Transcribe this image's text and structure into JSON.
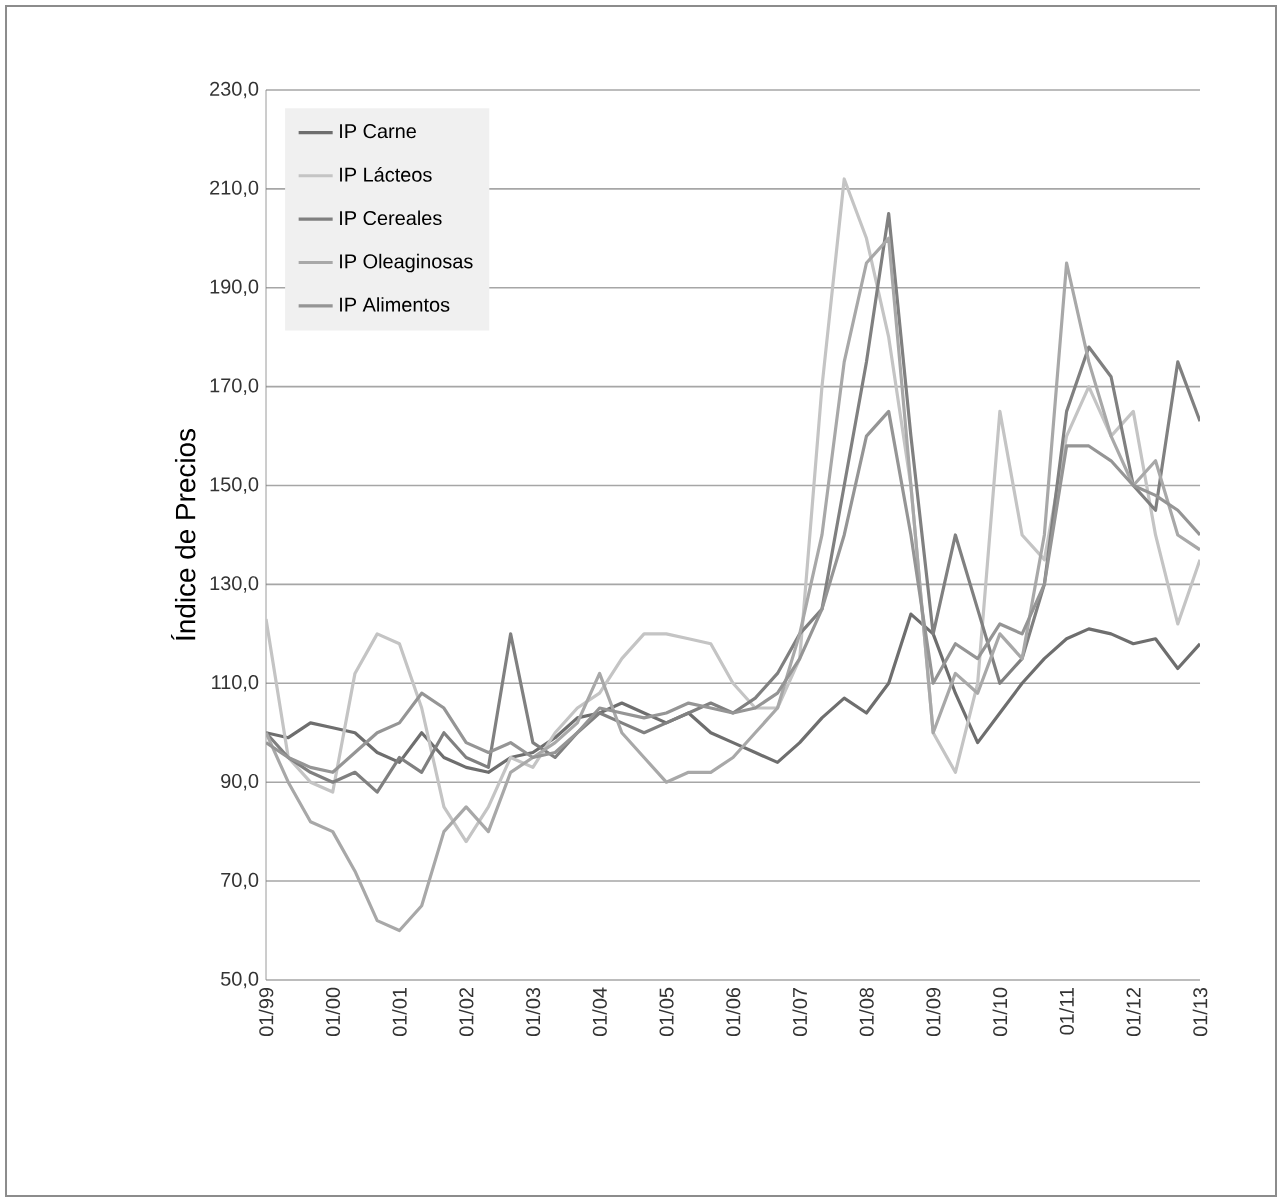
{
  "chart_data": {
    "type": "line",
    "ylabel": "Índice de Precios",
    "x": [
      "1999-01",
      "1999-05",
      "1999-09",
      "2000-01",
      "2000-05",
      "2000-09",
      "2001-01",
      "2001-05",
      "2001-09",
      "2002-01",
      "2002-05",
      "2002-09",
      "2003-01",
      "2003-05",
      "2003-09",
      "2004-01",
      "2004-05",
      "2004-09",
      "2005-01",
      "2005-05",
      "2005-09",
      "2006-01",
      "2006-05",
      "2006-09",
      "2007-01",
      "2007-05",
      "2007-09",
      "2008-01",
      "2008-05",
      "2008-09",
      "2009-01",
      "2009-05",
      "2009-09",
      "2010-01",
      "2010-05",
      "2010-09",
      "2011-01",
      "2011-05",
      "2011-09",
      "2012-01",
      "2012-05",
      "2012-09",
      "2013-01"
    ],
    "series": [
      {
        "name": "IP Carne",
        "color": "#6e6e6e",
        "values": [
          100,
          99,
          102,
          101,
          100,
          96,
          94,
          100,
          95,
          93,
          92,
          95,
          96,
          99,
          103,
          104,
          106,
          104,
          102,
          104,
          100,
          98,
          96,
          94,
          98,
          103,
          107,
          104,
          110,
          124,
          120,
          108,
          98,
          104,
          110,
          115,
          119,
          121,
          120,
          118,
          119,
          113,
          118
        ]
      },
      {
        "name": "IP Lácteos",
        "color": "#c4c4c4",
        "values": [
          123,
          95,
          90,
          88,
          112,
          120,
          118,
          105,
          85,
          78,
          85,
          95,
          93,
          100,
          105,
          108,
          115,
          120,
          120,
          119,
          118,
          110,
          105,
          105,
          115,
          170,
          212,
          200,
          180,
          150,
          100,
          92,
          110,
          165,
          140,
          135,
          160,
          170,
          160,
          165,
          140,
          122,
          135
        ]
      },
      {
        "name": "IP Cereales",
        "color": "#808080",
        "values": [
          100,
          95,
          92,
          90,
          92,
          88,
          95,
          92,
          100,
          95,
          93,
          120,
          98,
          95,
          100,
          104,
          102,
          100,
          102,
          104,
          106,
          104,
          107,
          112,
          120,
          125,
          150,
          175,
          205,
          160,
          120,
          140,
          125,
          110,
          115,
          130,
          165,
          178,
          172,
          150,
          145,
          175,
          163
        ]
      },
      {
        "name": "IP Oleaginosas",
        "color": "#a8a8a8",
        "values": [
          100,
          90,
          82,
          80,
          72,
          62,
          60,
          65,
          80,
          85,
          80,
          92,
          95,
          98,
          102,
          112,
          100,
          95,
          90,
          92,
          92,
          95,
          100,
          105,
          120,
          140,
          175,
          195,
          200,
          150,
          100,
          112,
          108,
          120,
          115,
          140,
          195,
          175,
          160,
          150,
          155,
          140,
          137
        ]
      },
      {
        "name": "IP Alimentos",
        "color": "#959595",
        "values": [
          98,
          95,
          93,
          92,
          96,
          100,
          102,
          108,
          105,
          98,
          96,
          98,
          95,
          96,
          100,
          105,
          104,
          103,
          104,
          106,
          105,
          104,
          105,
          108,
          115,
          125,
          140,
          160,
          165,
          140,
          110,
          118,
          115,
          122,
          120,
          130,
          158,
          158,
          155,
          150,
          148,
          145,
          140
        ]
      }
    ],
    "xlim": [
      "1999-01",
      "2013-01"
    ],
    "xticks": [
      {
        "value": "1999-01",
        "label": "01/99"
      },
      {
        "value": "2000-01",
        "label": "01/00"
      },
      {
        "value": "2001-01",
        "label": "01/01"
      },
      {
        "value": "2002-01",
        "label": "01/02"
      },
      {
        "value": "2003-01",
        "label": "01/03"
      },
      {
        "value": "2004-01",
        "label": "01/04"
      },
      {
        "value": "2005-01",
        "label": "01/05"
      },
      {
        "value": "2006-01",
        "label": "01/06"
      },
      {
        "value": "2007-01",
        "label": "01/07"
      },
      {
        "value": "2008-01",
        "label": "01/08"
      },
      {
        "value": "2009-01",
        "label": "01/09"
      },
      {
        "value": "2010-01",
        "label": "01/10"
      },
      {
        "value": "2011-01",
        "label": "01/11"
      },
      {
        "value": "2012-01",
        "label": "01/12"
      },
      {
        "value": "2013-01",
        "label": "01/13"
      }
    ],
    "ylim": [
      50,
      230
    ],
    "yticks": [
      {
        "value": 50,
        "label": "50,0"
      },
      {
        "value": 70,
        "label": "70,0"
      },
      {
        "value": 90,
        "label": "90,0"
      },
      {
        "value": 110,
        "label": "110,0"
      },
      {
        "value": 130,
        "label": "130,0"
      },
      {
        "value": 150,
        "label": "150,0"
      },
      {
        "value": 170,
        "label": "170,0"
      },
      {
        "value": 190,
        "label": "190,0"
      },
      {
        "value": 210,
        "label": "210,0"
      },
      {
        "value": 230,
        "label": "230,0"
      }
    ],
    "grid": "y",
    "legend": "top left",
    "line_style": "solid",
    "marker": "none"
  }
}
